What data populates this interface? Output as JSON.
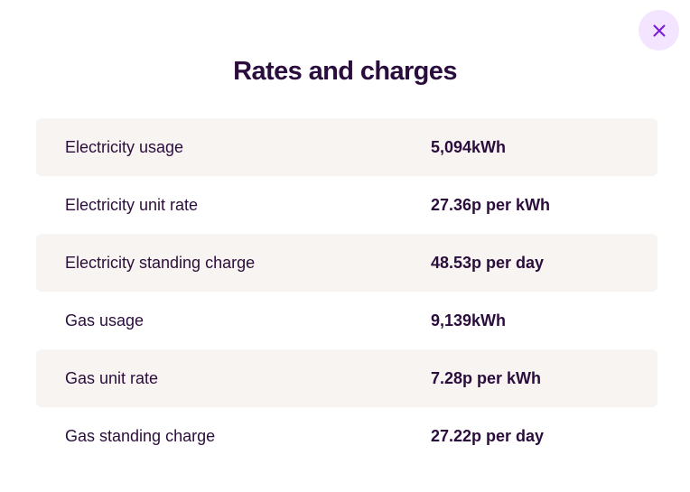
{
  "modal": {
    "title": "Rates and charges",
    "close_icon": "close-icon",
    "accent_color": "#7b18d6",
    "close_bg_color": "#f3e5ff",
    "text_color": "#2b0d3d",
    "row_shade_color": "#f8f4f1"
  },
  "rates": [
    {
      "label": "Electricity usage",
      "value": "5,094kWh"
    },
    {
      "label": "Electricity unit rate",
      "value": "27.36p per kWh"
    },
    {
      "label": "Electricity standing charge",
      "value": "48.53p per day"
    },
    {
      "label": "Gas usage",
      "value": "9,139kWh"
    },
    {
      "label": "Gas unit rate",
      "value": "7.28p per kWh"
    },
    {
      "label": "Gas standing charge",
      "value": "27.22p per day"
    }
  ]
}
